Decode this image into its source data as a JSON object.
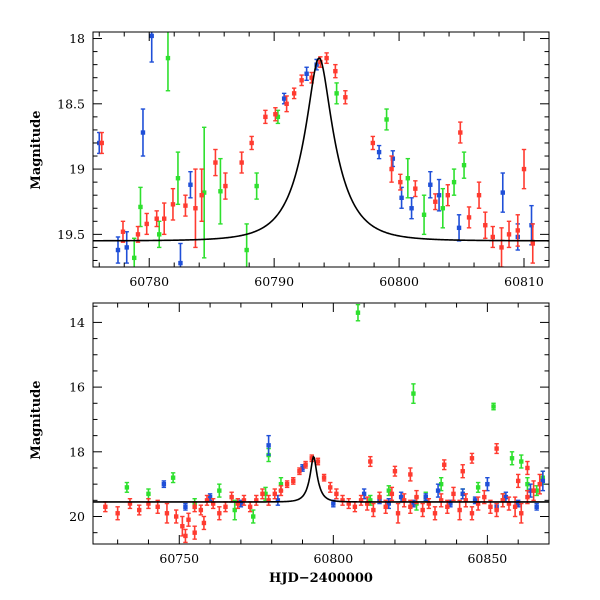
{
  "colors": {
    "blue": "#1f4fd8",
    "green": "#2ee02e",
    "red": "#ff3b30",
    "model": "#000000"
  },
  "chart_data": [
    {
      "type": "scatter",
      "title": "",
      "xlabel": "",
      "ylabel": "Magnitude",
      "xlim": [
        60775.5,
        60812
      ],
      "ylim": [
        19.75,
        17.95
      ],
      "y_inverted": true,
      "grid": false,
      "legend": "none",
      "xticks": [
        60780,
        60790,
        60800,
        60810
      ],
      "xtick_labels": [
        "60780",
        "60790",
        "60800",
        "60810"
      ],
      "yticks": [
        18,
        18.5,
        19,
        19.5
      ],
      "ytick_labels": [
        "18",
        "18.5",
        "19",
        "19.5"
      ],
      "model_curve": {
        "peak_time": 60793.6,
        "peak_mag": 18.15,
        "baseline_mag": 19.55,
        "timescale_days": 2.7
      },
      "series": [
        {
          "color": "blue",
          "x": [
            60776,
            60777.5,
            60778.2,
            60779.5,
            60780.2,
            60782.5,
            60783.3,
            60790.8,
            60792.6,
            60793.4,
            60798.4,
            60799.5,
            60800.2,
            60801,
            60802.5,
            60803.2,
            60804.8,
            60808.3,
            60809.5,
            60810.6
          ],
          "y": [
            18.8,
            19.62,
            19.6,
            18.72,
            17.98,
            19.72,
            19.12,
            18.46,
            18.27,
            18.2,
            18.87,
            18.92,
            19.22,
            19.3,
            19.12,
            19.2,
            19.45,
            19.18,
            19.52,
            19.43
          ],
          "err": [
            0.08,
            0.1,
            0.12,
            0.18,
            0.2,
            0.15,
            0.1,
            0.04,
            0.05,
            0.04,
            0.05,
            0.06,
            0.08,
            0.08,
            0.1,
            0.12,
            0.1,
            0.15,
            0.1,
            0.15
          ]
        },
        {
          "color": "green",
          "x": [
            60778.8,
            60779.3,
            60780.8,
            60781.5,
            60782.3,
            60784.4,
            60785.7,
            60787.8,
            60788.6,
            60790.3,
            60795,
            60799,
            60800.7,
            60802,
            60803.5,
            60804.4,
            60805.2
          ],
          "y": [
            19.68,
            19.29,
            19.5,
            18.15,
            19.07,
            19.18,
            19.17,
            19.62,
            19.13,
            18.6,
            18.42,
            18.62,
            19.07,
            19.35,
            19.3,
            19.1,
            18.97
          ],
          "err": [
            0.15,
            0.15,
            0.1,
            0.25,
            0.2,
            0.5,
            0.25,
            0.2,
            0.1,
            0.05,
            0.08,
            0.08,
            0.15,
            0.15,
            0.15,
            0.1,
            0.1
          ]
        },
        {
          "color": "red",
          "x": [
            60776.2,
            60777.9,
            60779.1,
            60779.8,
            60780.6,
            60781.2,
            60781.9,
            60782.9,
            60783.7,
            60784.2,
            60785.3,
            60786.1,
            60787.4,
            60788.2,
            60789.3,
            60790.1,
            60791,
            60791.6,
            60792.2,
            60793,
            60793.7,
            60794.2,
            60794.9,
            60795.7,
            60797.9,
            60799.4,
            60800.1,
            60801.3,
            60802.9,
            60803.9,
            60804.9,
            60805.6,
            60806.4,
            60806.9,
            60807.5,
            60808.2,
            60808.8,
            60809.5,
            60810,
            60810.7
          ],
          "y": [
            18.8,
            19.48,
            19.5,
            19.42,
            19.38,
            19.38,
            19.27,
            19.28,
            19.3,
            19.2,
            18.95,
            19.13,
            18.95,
            18.8,
            18.6,
            18.58,
            18.5,
            18.42,
            18.32,
            18.3,
            18.18,
            18.15,
            18.25,
            18.45,
            18.8,
            19,
            19.1,
            19.15,
            19.25,
            19.2,
            18.72,
            19.37,
            19.2,
            19.43,
            19.52,
            19.6,
            19.5,
            19.47,
            19.0,
            19.57
          ],
          "err": [
            0.08,
            0.08,
            0.06,
            0.08,
            0.06,
            0.12,
            0.12,
            0.08,
            0.3,
            0.2,
            0.1,
            0.1,
            0.08,
            0.05,
            0.05,
            0.05,
            0.06,
            0.04,
            0.04,
            0.04,
            0.04,
            0.04,
            0.05,
            0.05,
            0.05,
            0.1,
            0.06,
            0.06,
            0.06,
            0.08,
            0.08,
            0.08,
            0.1,
            0.1,
            0.08,
            0.15,
            0.1,
            0.12,
            0.15,
            0.15
          ]
        }
      ]
    },
    {
      "type": "scatter",
      "title": "",
      "xlabel": "HJD−2400000",
      "ylabel": "Magnitude",
      "xlim": [
        60722,
        60870
      ],
      "ylim": [
        20.85,
        13.4
      ],
      "y_inverted": true,
      "grid": false,
      "legend": "none",
      "xticks": [
        60750,
        60800,
        60850
      ],
      "xtick_labels": [
        "60750",
        "60800",
        "60850"
      ],
      "yticks": [
        14,
        16,
        18,
        20
      ],
      "ytick_labels": [
        "14",
        "16",
        "18",
        "20"
      ],
      "model_curve": {
        "peak_time": 60793.6,
        "peak_mag": 18.15,
        "baseline_mag": 19.55,
        "timescale_days": 2.7
      },
      "series": [
        {
          "color": "green",
          "x": [
            60733,
            60740,
            60748,
            60755,
            60763,
            60768,
            60774,
            60778,
            60783,
            60808,
            60812,
            60818,
            60826,
            60830,
            60835,
            60842,
            60847,
            60852,
            60855,
            60858,
            60861,
            60863,
            60866,
            60868,
            60779,
            60827
          ],
          "y": [
            19.1,
            19.3,
            18.8,
            19.6,
            19.2,
            19.8,
            20.0,
            19.3,
            19.0,
            13.7,
            19.5,
            19.2,
            16.2,
            19.4,
            19.0,
            19.3,
            19.1,
            16.6,
            19.5,
            18.2,
            18.3,
            19.0,
            19.2,
            18.8,
            18.1,
            19.6
          ],
          "err": [
            0.15,
            0.15,
            0.15,
            0.15,
            0.2,
            0.3,
            0.2,
            0.2,
            0.2,
            0.25,
            0.15,
            0.15,
            0.3,
            0.15,
            0.2,
            0.15,
            0.15,
            0.1,
            0.2,
            0.2,
            0.2,
            0.2,
            0.15,
            0.2,
            0.2,
            0.2
          ]
        },
        {
          "color": "blue",
          "x": [
            60745,
            60752,
            60760,
            60770,
            60779,
            60782,
            60790,
            60800,
            60810,
            60815,
            60818,
            60822,
            60826,
            60830,
            60834,
            60838,
            60842,
            60846,
            60850,
            60853,
            60856,
            60860,
            60864,
            60866,
            60868
          ],
          "y": [
            19.0,
            19.7,
            19.4,
            19.6,
            17.8,
            19.5,
            18.5,
            19.6,
            19.3,
            19.5,
            19.6,
            19.4,
            19.6,
            19.4,
            19.2,
            19.6,
            19.3,
            19.5,
            19.0,
            19.7,
            19.4,
            19.6,
            19.2,
            19.7,
            18.9
          ],
          "err": [
            0.1,
            0.1,
            0.1,
            0.1,
            0.3,
            0.15,
            0.1,
            0.1,
            0.15,
            0.1,
            0.15,
            0.15,
            0.1,
            0.1,
            0.2,
            0.1,
            0.15,
            0.1,
            0.2,
            0.1,
            0.15,
            0.1,
            0.2,
            0.1,
            0.3
          ]
        },
        {
          "color": "red",
          "x": [
            60726,
            60730,
            60734,
            60737,
            60740,
            60743,
            60746,
            60749,
            60751,
            60753,
            60755,
            60757,
            60759,
            60761,
            60763,
            60765,
            60767,
            60769,
            60771,
            60773,
            60775,
            60777,
            60779,
            60781,
            60783,
            60785,
            60787,
            60789,
            60791,
            60793,
            60795,
            60797,
            60799,
            60801,
            60803,
            60805,
            60807,
            60809,
            60811,
            60813,
            60815,
            60817,
            60819,
            60821,
            60823,
            60825,
            60827,
            60829,
            60831,
            60833,
            60835,
            60837,
            60839,
            60841,
            60843,
            60845,
            60847,
            60849,
            60851,
            60853,
            60855,
            60857,
            60859,
            60861,
            60863,
            60865,
            60867,
            60752,
            60758,
            60812,
            60820,
            60836,
            60845,
            60853,
            60863,
            60755,
            60825,
            60842,
            60860
          ],
          "y": [
            19.7,
            19.9,
            19.6,
            19.8,
            19.6,
            19.7,
            19.9,
            20.0,
            20.3,
            20.1,
            19.7,
            19.8,
            19.5,
            19.6,
            19.9,
            19.7,
            19.4,
            19.6,
            19.5,
            19.7,
            19.5,
            19.3,
            19.5,
            19.3,
            19.2,
            19.0,
            18.9,
            18.6,
            18.4,
            18.2,
            18.3,
            18.8,
            19.1,
            19.3,
            19.5,
            19.6,
            19.7,
            19.5,
            19.6,
            19.8,
            19.4,
            19.7,
            19.3,
            19.9,
            19.5,
            19.7,
            19.4,
            19.8,
            19.6,
            19.9,
            19.5,
            19.7,
            19.3,
            19.8,
            19.5,
            19.9,
            19.6,
            19.4,
            19.7,
            19.8,
            19.5,
            19.6,
            19.7,
            19.9,
            19.4,
            19.2,
            19.0,
            20.6,
            20.2,
            18.3,
            18.6,
            18.4,
            18.2,
            17.9,
            18.5,
            20.5,
            18.7,
            18.6,
            18.9
          ],
          "err": [
            0.15,
            0.2,
            0.15,
            0.15,
            0.15,
            0.2,
            0.3,
            0.2,
            0.3,
            0.2,
            0.15,
            0.15,
            0.15,
            0.15,
            0.2,
            0.15,
            0.15,
            0.15,
            0.15,
            0.15,
            0.15,
            0.15,
            0.15,
            0.15,
            0.15,
            0.1,
            0.1,
            0.1,
            0.1,
            0.1,
            0.1,
            0.1,
            0.15,
            0.15,
            0.15,
            0.15,
            0.15,
            0.15,
            0.2,
            0.2,
            0.15,
            0.2,
            0.2,
            0.3,
            0.2,
            0.2,
            0.2,
            0.2,
            0.15,
            0.2,
            0.2,
            0.2,
            0.2,
            0.3,
            0.2,
            0.2,
            0.2,
            0.2,
            0.2,
            0.2,
            0.2,
            0.2,
            0.3,
            0.3,
            0.2,
            0.3,
            0.3,
            0.2,
            0.2,
            0.15,
            0.15,
            0.15,
            0.15,
            0.15,
            0.2,
            0.2,
            0.2,
            0.2,
            0.2
          ]
        }
      ]
    }
  ]
}
